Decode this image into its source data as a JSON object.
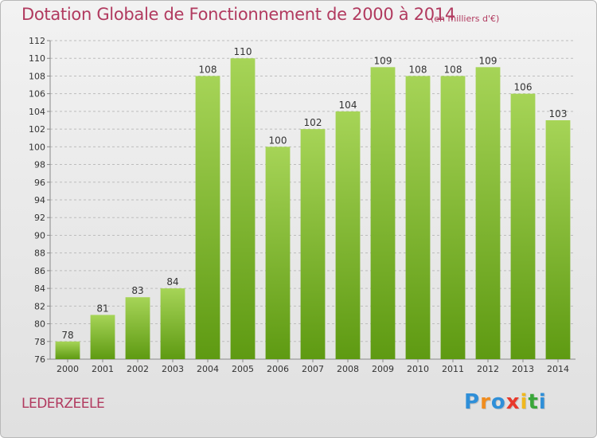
{
  "title": "Dotation Globale de Fonctionnement de 2000 à 2014",
  "unit_note": "(en milliers d'€)",
  "commune": "LEDERZEELE",
  "logo": {
    "text": "Proxiti",
    "letters": [
      {
        "ch": "P",
        "color": "#2f8fd8"
      },
      {
        "ch": "r",
        "color": "#f08c1e"
      },
      {
        "ch": "o",
        "color": "#2f8fd8"
      },
      {
        "ch": "x",
        "color": "#e8392b"
      },
      {
        "ch": "i",
        "color": "#f0b81e"
      },
      {
        "ch": "t",
        "color": "#3aa63a"
      },
      {
        "ch": "i",
        "color": "#2f8fd8"
      }
    ]
  },
  "colors": {
    "bar_top": "#a6d457",
    "bar_bottom": "#5e9a12",
    "grid": "#bdbdbd",
    "axis_text": "#333333",
    "accent": "#b13a5f"
  },
  "chart_data": {
    "type": "bar",
    "title": "Dotation Globale de Fonctionnement de 2000 à 2014",
    "subtitle": "(en milliers d'€)",
    "xlabel": "",
    "ylabel": "",
    "categories": [
      "2000",
      "2001",
      "2002",
      "2003",
      "2004",
      "2005",
      "2006",
      "2007",
      "2008",
      "2009",
      "2010",
      "2011",
      "2012",
      "2013",
      "2014"
    ],
    "values": [
      78,
      81,
      83,
      84,
      108,
      110,
      100,
      102,
      104,
      109,
      108,
      108,
      109,
      106,
      103
    ],
    "ylim": [
      76,
      112
    ],
    "yticks": [
      76,
      78,
      80,
      82,
      84,
      86,
      88,
      90,
      92,
      94,
      96,
      98,
      100,
      102,
      104,
      106,
      108,
      110,
      112
    ],
    "grid": true,
    "data_labels": true
  }
}
